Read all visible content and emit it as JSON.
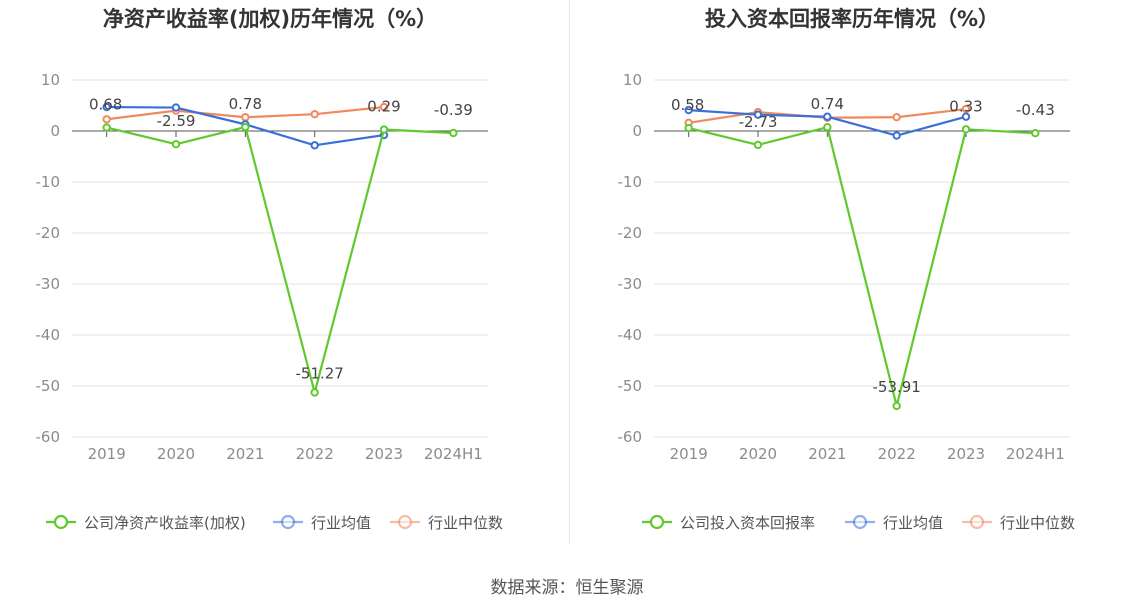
{
  "source_text": "数据来源：恒生聚源",
  "colors": {
    "company": "#5fc92d",
    "avg": "#3a6fdc",
    "median": "#f08a5d",
    "grid": "#e3e3e3",
    "axis_text": "#8c8c8c",
    "title": "#333333"
  },
  "chart_data": [
    {
      "type": "line",
      "title": "净资产收益率(加权)历年情况（%）",
      "categories": [
        "2019",
        "2020",
        "2021",
        "2022",
        "2023",
        "2024H1"
      ],
      "ylim": [
        -60,
        10
      ],
      "yticks": [
        10,
        0,
        -10,
        -20,
        -30,
        -40,
        -50,
        -60
      ],
      "grid": true,
      "legend_position": "bottom",
      "series": [
        {
          "name": "公司净资产收益率(加权)",
          "role": "company",
          "values": [
            0.68,
            -2.59,
            0.78,
            -51.27,
            0.29,
            -0.39
          ],
          "labels": [
            "0.68",
            "-2.59",
            "0.78",
            "-51.27",
            "0.29",
            "-0.39"
          ]
        },
        {
          "name": "行业均值",
          "role": "avg",
          "values": [
            4.7,
            4.6,
            1.3,
            -2.8,
            -0.8,
            null
          ]
        },
        {
          "name": "行业中位数",
          "role": "median",
          "values": [
            2.3,
            4.0,
            2.7,
            3.3,
            4.7,
            null
          ]
        }
      ]
    },
    {
      "type": "line",
      "title": "投入资本回报率历年情况（%）",
      "categories": [
        "2019",
        "2020",
        "2021",
        "2022",
        "2023",
        "2024H1"
      ],
      "ylim": [
        -60,
        10
      ],
      "yticks": [
        10,
        0,
        -10,
        -20,
        -30,
        -40,
        -50,
        -60
      ],
      "grid": true,
      "legend_position": "bottom",
      "series": [
        {
          "name": "公司投入资本回报率",
          "role": "company",
          "values": [
            0.58,
            -2.73,
            0.74,
            -53.91,
            0.33,
            -0.43
          ],
          "labels": [
            "0.58",
            "-2.73",
            "0.74",
            "-53.91",
            "0.33",
            "-0.43"
          ]
        },
        {
          "name": "行业均值",
          "role": "avg",
          "values": [
            4.1,
            3.2,
            2.8,
            -0.9,
            2.8,
            null
          ]
        },
        {
          "name": "行业中位数",
          "role": "median",
          "values": [
            1.6,
            3.7,
            2.6,
            2.7,
            4.3,
            null
          ]
        }
      ]
    }
  ]
}
